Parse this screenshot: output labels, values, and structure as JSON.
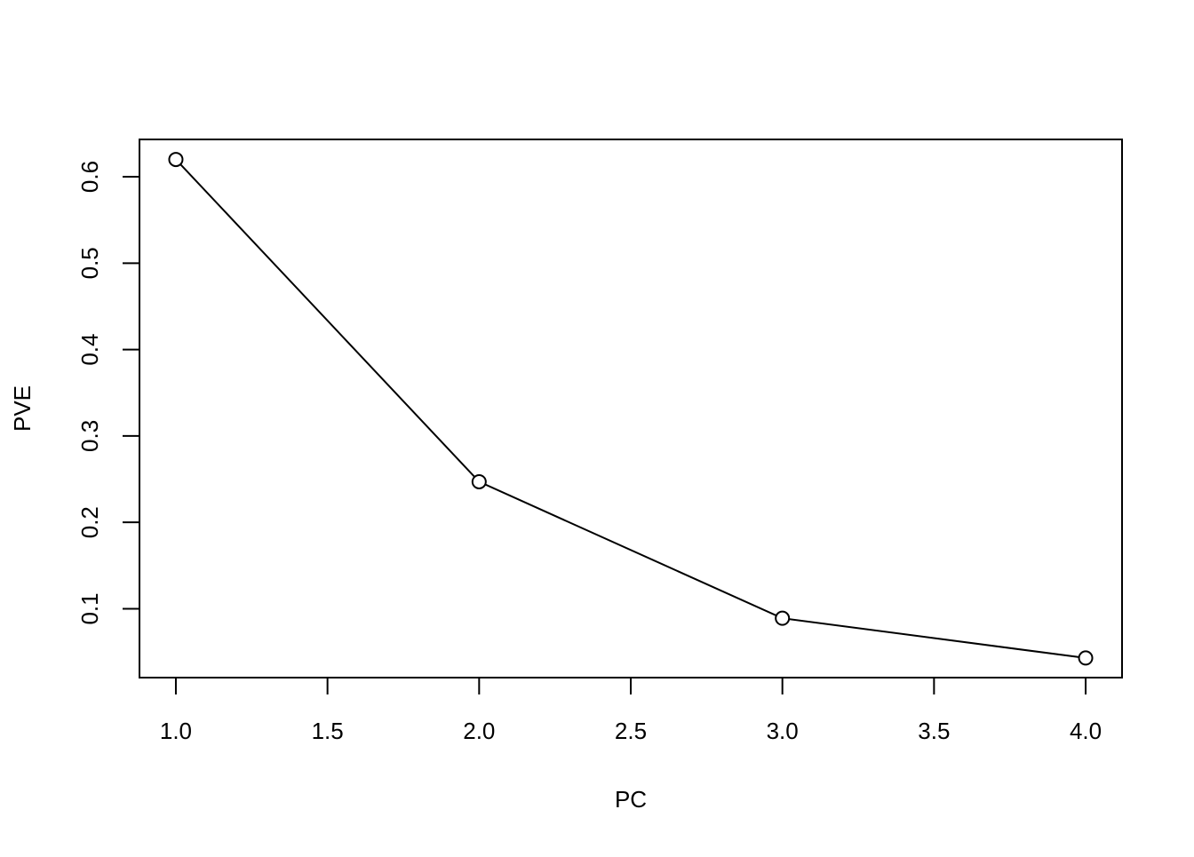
{
  "chart_data": {
    "type": "line",
    "x_label": "PC",
    "y_label": "PVE",
    "x": [
      1,
      2,
      3,
      4
    ],
    "y": [
      0.62,
      0.247,
      0.089,
      0.043
    ],
    "markers": true,
    "color": "#000000",
    "xlim": [
      0.88,
      4.12
    ],
    "xticks": [
      {
        "value": 1,
        "label": "1.0"
      },
      {
        "value": 1.5,
        "label": "1.5"
      },
      {
        "value": 2,
        "label": "2.0"
      },
      {
        "value": 2.5,
        "label": "2.5"
      },
      {
        "value": 3,
        "label": "3.0"
      },
      {
        "value": 3.5,
        "label": "3.5"
      },
      {
        "value": 4,
        "label": "4.0"
      }
    ],
    "ylim": [
      0.0203,
      0.6432
    ],
    "yticks": [
      0.1,
      0.2,
      0.3,
      0.4,
      0.5,
      0.6
    ],
    "grid": false
  }
}
